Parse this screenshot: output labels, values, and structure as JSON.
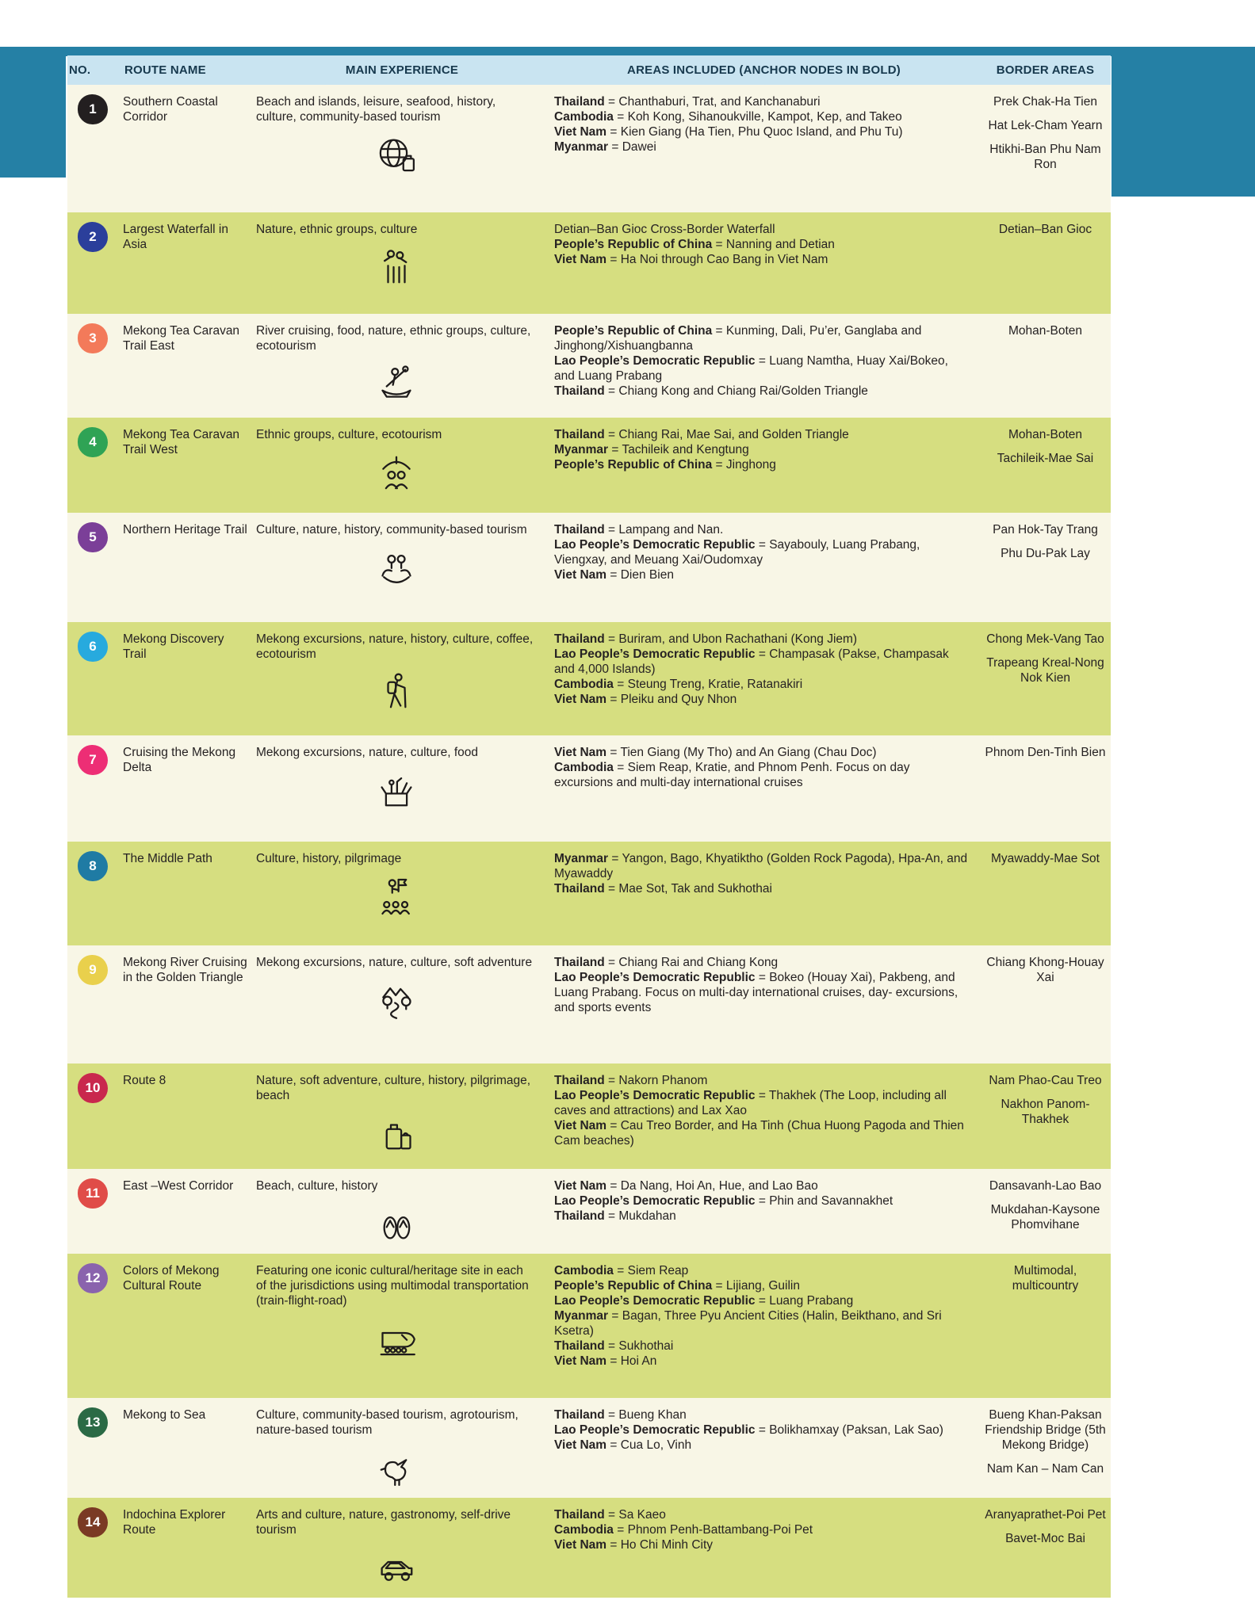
{
  "header": {
    "columns": [
      "NO.",
      "ROUTE NAME",
      "MAIN EXPERIENCE",
      "AREAS INCLUDED (ANCHOR NODES IN BOLD)",
      "BORDER AREAS"
    ]
  },
  "colors": {
    "teal_accent": "#2580a5",
    "header_bg": "#c9e4f1",
    "header_text": "#17394e",
    "row_cream": "#f8f6e6",
    "row_olive": "#d6de80",
    "body_text": "#262223"
  },
  "rows": [
    {
      "no": "1",
      "circle_color": "#231f20",
      "route_name": "Southern Coastal Corridor",
      "experience": "Beach and islands, leisure, seafood, history, culture, community-based tourism",
      "icon": "globe-travel-icon",
      "areas": [
        {
          "bold": "Thailand",
          "text": " = Chanthaburi, Trat, and Kanchanaburi"
        },
        {
          "bold": "Cambodia",
          "text": " = Koh Kong, Sihanoukville, Kampot, Kep, and Takeo"
        },
        {
          "bold": "Viet Nam",
          "text": " = Kien Giang (Ha Tien, Phu Quoc Island, and Phu Tu)"
        },
        {
          "bold": "Myanmar",
          "text": " = Dawei"
        }
      ],
      "borders": [
        "Prek Chak-Ha Tien",
        "Hat Lek-Cham Yearn",
        "Htikhi-Ban Phu Nam Ron"
      ]
    },
    {
      "no": "2",
      "circle_color": "#2b3f9b",
      "route_name": "Largest Waterfall in Asia",
      "experience": "Nature, ethnic groups, culture",
      "icon": "waterfall-people-icon",
      "areas": [
        {
          "bold": "",
          "text": "Detian–Ban Gioc Cross-Border Waterfall"
        },
        {
          "bold": "People’s Republic of China",
          "text": " = Nanning and Detian"
        },
        {
          "bold": "Viet Nam",
          "text": " = Ha Noi through Cao Bang in Viet Nam"
        }
      ],
      "borders": [
        "Detian–Ban Gioc"
      ]
    },
    {
      "no": "3",
      "circle_color": "#f37a5a",
      "route_name": "Mekong Tea Caravan Trail East",
      "experience": "River cruising, food, nature, ethnic groups, culture, ecotourism",
      "icon": "canoe-paddler-icon",
      "areas": [
        {
          "bold": "People’s Republic of China",
          "text": " = Kunming, Dali, Pu’er, Ganglaba and Jinghong/Xishuangbanna"
        },
        {
          "bold": "Lao People’s Democratic Republic",
          "text": " = Luang Namtha, Huay Xai/Bokeo, and Luang Prabang"
        },
        {
          "bold": "Thailand",
          "text": " = Chiang Kong and Chiang Rai/Golden Triangle"
        }
      ],
      "borders": [
        "Mohan-Boten"
      ]
    },
    {
      "no": "4",
      "circle_color": "#2fa355",
      "route_name": "Mekong Tea Caravan Trail West",
      "experience": "Ethnic groups, culture, ecotourism",
      "icon": "umbrella-people-icon",
      "areas": [
        {
          "bold": "Thailand",
          "text": " = Chiang Rai, Mae Sai, and Golden Triangle"
        },
        {
          "bold": "Myanmar",
          "text": " = Tachileik and Kengtung"
        },
        {
          "bold": "People’s Republic of China",
          "text": " = Jinghong"
        }
      ],
      "borders": [
        "Mohan-Boten",
        "Tachileik-Mae Sai"
      ]
    },
    {
      "no": "5",
      "circle_color": "#7b3f98",
      "route_name": "Northern Heritage Trail",
      "experience": "Culture, nature, history, community-based tourism",
      "icon": "hands-community-icon",
      "areas": [
        {
          "bold": "Thailand",
          "text": " = Lampang and Nan."
        },
        {
          "bold": "Lao People’s Democratic Republic",
          "text": " = Sayabouly, Luang Prabang, Viengxay, and Meuang Xai/Oudomxay"
        },
        {
          "bold": "Viet Nam",
          "text": " = Dien Bien"
        }
      ],
      "borders": [
        "Pan Hok-Tay Trang",
        "Phu Du-Pak Lay"
      ]
    },
    {
      "no": "6",
      "circle_color": "#27aade",
      "route_name": "Mekong Discovery Trail",
      "experience": "Mekong excursions, nature, history, culture, coffee, ecotourism",
      "icon": "hiker-icon",
      "areas": [
        {
          "bold": "Thailand",
          "text": " = Buriram, and Ubon Rachathani (Kong Jiem)"
        },
        {
          "bold": "Lao People’s Democratic Republic",
          "text": " = Champasak (Pakse, Champasak and 4,000 Islands)"
        },
        {
          "bold": "Cambodia",
          "text": " = Steung Treng, Kratie, Ratanakiri"
        },
        {
          "bold": "Viet Nam",
          "text": " = Pleiku and Quy Nhon"
        }
      ],
      "borders": [
        "Chong Mek-Vang Tao",
        "Trapeang Kreal-Nong Nok Kien"
      ]
    },
    {
      "no": "7",
      "circle_color": "#ed2e75",
      "route_name": "Cruising the Mekong Delta",
      "experience": "Mekong excursions, nature, culture, food",
      "icon": "produce-box-icon",
      "areas": [
        {
          "bold": "Viet Nam",
          "text": " = Tien Giang (My Tho) and An Giang (Chau Doc)"
        },
        {
          "bold": "Cambodia",
          "text": " = Siem Reap, Kratie, and Phnom Penh. Focus on day excursions and multi-day international cruises"
        }
      ],
      "borders": [
        "Phnom Den-Tinh Bien"
      ]
    },
    {
      "no": "8",
      "circle_color": "#1f7ba4",
      "route_name": "The Middle Path",
      "experience": "Culture, history, pilgrimage",
      "icon": "guide-group-icon",
      "areas": [
        {
          "bold": "Myanmar",
          "text": " = Yangon, Bago, Khyatiktho (Golden Rock Pagoda), Hpa-An, and Myawaddy"
        },
        {
          "bold": "Thailand",
          "text": " = Mae Sot, Tak and Sukhothai"
        }
      ],
      "borders": [
        "Myawaddy-Mae Sot"
      ]
    },
    {
      "no": "9",
      "circle_color": "#e9d04c",
      "route_name": "Mekong River Cruising in the Golden Triangle",
      "experience": "Mekong excursions, nature, culture, soft adventure",
      "icon": "river-mountains-icon",
      "areas": [
        {
          "bold": "Thailand",
          "text": " = Chiang Rai and Chiang Kong"
        },
        {
          "bold": "Lao People’s Democratic Republic",
          "text": " = Bokeo (Houay Xai), Pakbeng, and Luang Prabang. Focus on multi-day international cruises, day- excursions, and sports events"
        }
      ],
      "borders": [
        "Chiang Khong-Houay Xai"
      ]
    },
    {
      "no": "10",
      "circle_color": "#c9284d",
      "route_name": "Route 8",
      "experience": "Nature, soft adventure, culture, history, pilgrimage, beach",
      "icon": "luggage-icon",
      "areas": [
        {
          "bold": "Thailand",
          "text": " = Nakorn Phanom"
        },
        {
          "bold": "Lao People’s Democratic Republic",
          "text": " = Thakhek (The Loop, including all caves and attractions) and Lax Xao"
        },
        {
          "bold": "Viet Nam",
          "text": " = Cau Treo Border, and Ha Tinh (Chua Huong Pagoda and Thien Cam beaches)"
        }
      ],
      "borders": [
        "Nam Phao-Cau Treo",
        "Nakhon Panom-Thakhek"
      ]
    },
    {
      "no": "11",
      "circle_color": "#e04c48",
      "route_name": "East –West Corridor",
      "experience": "Beach, culture, history",
      "icon": "flip-flops-icon",
      "areas": [
        {
          "bold": "Viet Nam",
          "text": " = Da Nang, Hoi An, Hue, and Lao Bao"
        },
        {
          "bold": "Lao People’s Democratic Republic",
          "text": " = Phin and Savannakhet"
        },
        {
          "bold": "Thailand",
          "text": " = Mukdahan"
        }
      ],
      "borders": [
        "Dansavanh-Lao Bao",
        "Mukdahan-Kaysone Phomvihane"
      ]
    },
    {
      "no": "12",
      "circle_color": "#8a63ad",
      "route_name": "Colors of Mekong Cultural Route",
      "experience": "Featuring one iconic cultural/heritage site in each of the jurisdictions using multimodal transportation (train-flight-road)",
      "icon": "train-icon",
      "areas": [
        {
          "bold": "Cambodia",
          "text": " = Siem Reap"
        },
        {
          "bold": "People’s Republic of China",
          "text": " =  Lijiang, Guilin"
        },
        {
          "bold": "Lao People’s Democratic Republic",
          "text": " = Luang Prabang"
        },
        {
          "bold": "Myanmar",
          "text": " = Bagan, Three Pyu Ancient Cities (Halin, Beikthano, and Sri Ksetra)"
        },
        {
          "bold": "Thailand",
          "text": " = Sukhothai"
        },
        {
          "bold": "Viet Nam",
          "text": " = Hoi An"
        }
      ],
      "borders": [
        "Multimodal, multicountry"
      ]
    },
    {
      "no": "13",
      "circle_color": "#2b6a45",
      "route_name": "Mekong to Sea",
      "experience": "Culture, community-based tourism, agrotourism, nature-based tourism",
      "icon": "bird-icon",
      "areas": [
        {
          "bold": "Thailand",
          "text": " = Bueng Khan"
        },
        {
          "bold": "Lao People’s Democratic Republic",
          "text": " = Bolikhamxay (Paksan, Lak Sao)"
        },
        {
          "bold": "Viet Nam",
          "text": " = Cua Lo, Vinh"
        }
      ],
      "borders": [
        "Bueng Khan-Paksan Friendship Bridge (5th Mekong Bridge)",
        "Nam Kan – Nam Can"
      ]
    },
    {
      "no": "14",
      "circle_color": "#7a3a24",
      "route_name": "Indochina Explorer Route",
      "experience": "Arts and culture, nature, gastronomy, self-drive tourism",
      "icon": "car-icon",
      "areas": [
        {
          "bold": "Thailand",
          "text": " = Sa Kaeo"
        },
        {
          "bold": "Cambodia",
          "text": " = Phnom Penh-Battambang-Poi Pet"
        },
        {
          "bold": "Viet Nam",
          "text": " = Ho Chi Minh City"
        }
      ],
      "borders": [
        "Aranyaprathet-Poi Pet",
        "Bavet-Moc Bai"
      ]
    }
  ]
}
